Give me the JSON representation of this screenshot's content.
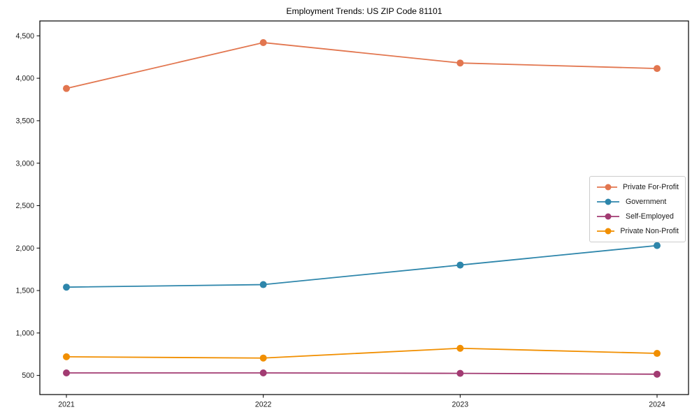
{
  "chart_data": {
    "type": "line",
    "title": "Employment Trends: US ZIP Code 81101",
    "categories": [
      "2021",
      "2022",
      "2023",
      "2024"
    ],
    "series": [
      {
        "name": "Private For-Profit",
        "color": "#E2764F",
        "values": [
          3880,
          4420,
          4180,
          4115
        ]
      },
      {
        "name": "Government",
        "color": "#2E86AB",
        "values": [
          1540,
          1570,
          1800,
          2030
        ]
      },
      {
        "name": "Self-Employed",
        "color": "#A23B72",
        "values": [
          530,
          530,
          525,
          515
        ]
      },
      {
        "name": "Private Non-Profit",
        "color": "#F18F01",
        "values": [
          720,
          705,
          820,
          760
        ]
      }
    ],
    "xlabel": "",
    "ylabel": "",
    "ylim": [
      275,
      4675
    ],
    "yticks": [
      {
        "value": 500,
        "label": "500"
      },
      {
        "value": 1000,
        "label": "1,000"
      },
      {
        "value": 1500,
        "label": "1,500"
      },
      {
        "value": 2000,
        "label": "2,000"
      },
      {
        "value": 2500,
        "label": "2,500"
      },
      {
        "value": 3000,
        "label": "3,000"
      },
      {
        "value": 3500,
        "label": "3,500"
      },
      {
        "value": 4000,
        "label": "4,000"
      },
      {
        "value": 4500,
        "label": "4,500"
      }
    ],
    "grid": false,
    "legend_position": "center-right",
    "axis_color": "#000000",
    "tick_label_color": "#1a1a1a"
  }
}
